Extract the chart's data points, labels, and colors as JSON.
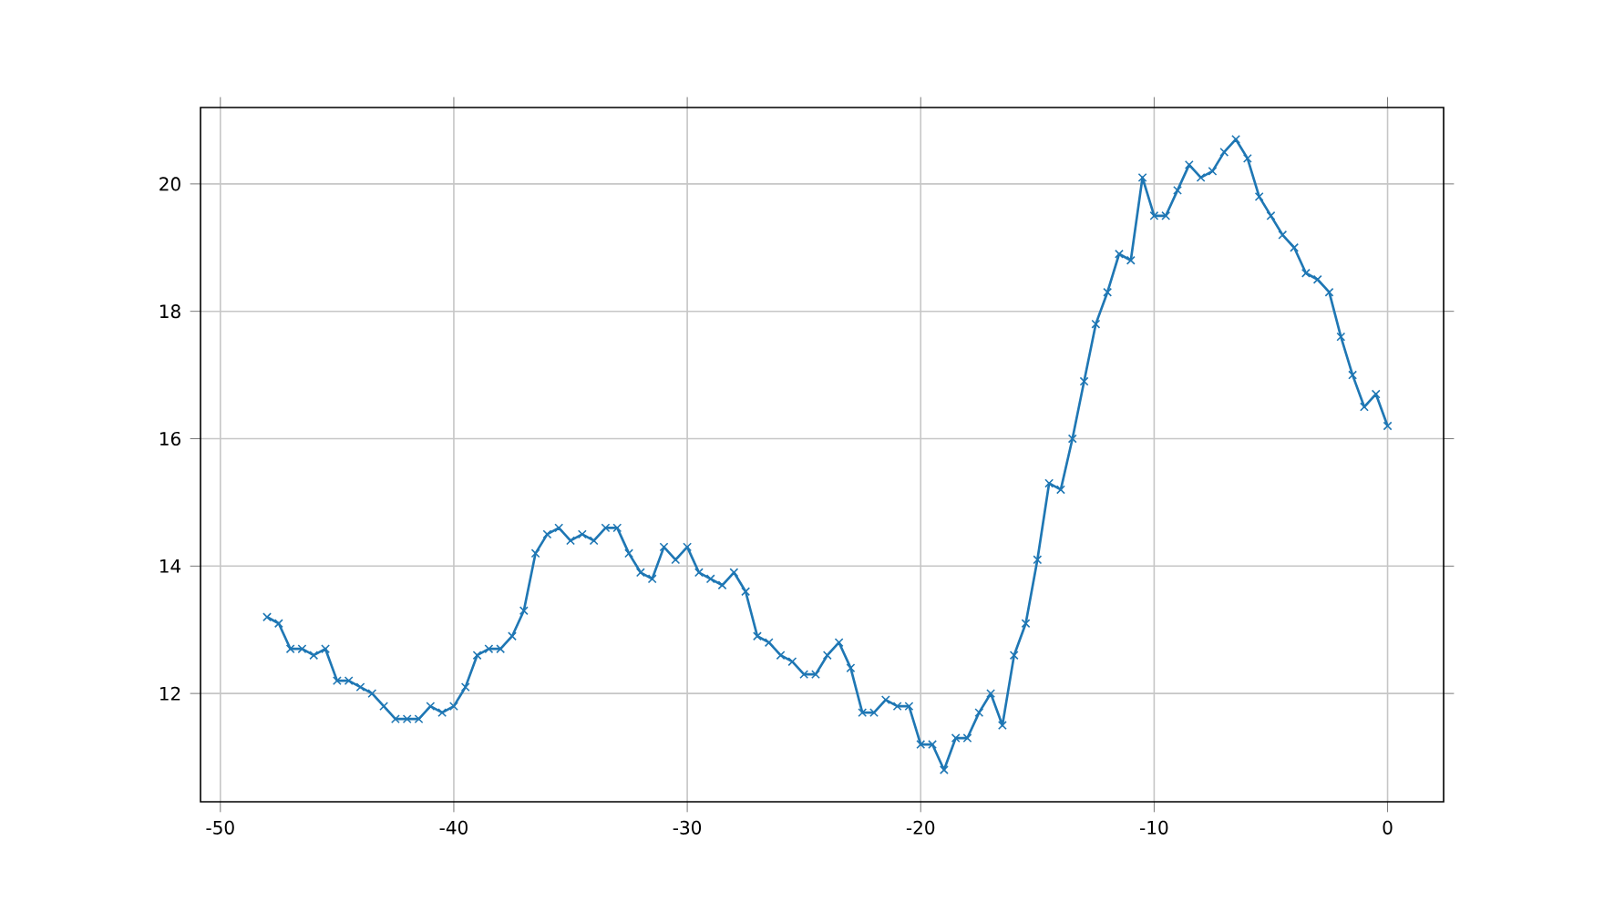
{
  "chart_data": {
    "type": "line",
    "x": [
      -48,
      -47.5,
      -47,
      -46.5,
      -46,
      -45.5,
      -45,
      -44.5,
      -44,
      -43.5,
      -43,
      -42.5,
      -42,
      -41.5,
      -41,
      -40.5,
      -40,
      -39.5,
      -39,
      -38.5,
      -38,
      -37.5,
      -37,
      -36.5,
      -36,
      -35.5,
      -35,
      -34.5,
      -34,
      -33.5,
      -33,
      -32.5,
      -32,
      -31.5,
      -31,
      -30.5,
      -30,
      -29.5,
      -29,
      -28.5,
      -28,
      -27.5,
      -27,
      -26.5,
      -26,
      -25.5,
      -25,
      -24.5,
      -24,
      -23.5,
      -23,
      -22.5,
      -22,
      -21.5,
      -21,
      -20.5,
      -20,
      -19.5,
      -19,
      -18.5,
      -18,
      -17.5,
      -17,
      -16.5,
      -16,
      -15.5,
      -15,
      -14.5,
      -14,
      -13.5,
      -13,
      -12.5,
      -12,
      -11.5,
      -11,
      -10.5,
      -10,
      -9.5,
      -9,
      -8.5,
      -8,
      -7.5,
      -7,
      -6.5,
      -6,
      -5.5,
      -5,
      -4.5,
      -4,
      -3.5,
      -3,
      -2.5,
      -2,
      -1.5,
      -1,
      -0.5,
      0
    ],
    "series": [
      {
        "color": "#1f77b4",
        "values": [
          13.2,
          13.1,
          12.7,
          12.7,
          12.6,
          12.7,
          12.2,
          12.2,
          12.1,
          12.0,
          11.8,
          11.6,
          11.6,
          11.6,
          11.8,
          11.7,
          11.8,
          12.1,
          12.6,
          12.7,
          12.7,
          12.9,
          13.3,
          14.2,
          14.5,
          14.6,
          14.4,
          14.5,
          14.4,
          14.6,
          14.6,
          14.2,
          13.9,
          13.8,
          14.3,
          14.1,
          14.3,
          13.9,
          13.8,
          13.7,
          13.9,
          13.6,
          12.9,
          12.8,
          12.6,
          12.5,
          12.3,
          12.3,
          12.6,
          12.8,
          12.4,
          11.7,
          11.7,
          11.9,
          11.8,
          11.8,
          11.2,
          11.2,
          10.8,
          11.3,
          11.3,
          11.7,
          12.0,
          11.5,
          12.6,
          13.1,
          14.1,
          15.3,
          15.2,
          16.0,
          16.9,
          17.8,
          18.3,
          18.9,
          18.8,
          20.1,
          19.5,
          19.5,
          19.9,
          20.3,
          20.1,
          20.2,
          20.5,
          20.7,
          20.4,
          19.8,
          19.5,
          19.2,
          19.0,
          18.6,
          18.5,
          18.3,
          17.6,
          17.0,
          16.5,
          16.7,
          16.2
        ]
      }
    ],
    "xlim": [
      -50.85,
      2.4
    ],
    "ylim": [
      10.3,
      21.2
    ],
    "xticks": [
      -50,
      -40,
      -30,
      -20,
      -10,
      0
    ],
    "yticks": [
      12,
      14,
      16,
      18,
      20
    ],
    "grid": true,
    "marker": "cross",
    "line_style": "solid"
  }
}
